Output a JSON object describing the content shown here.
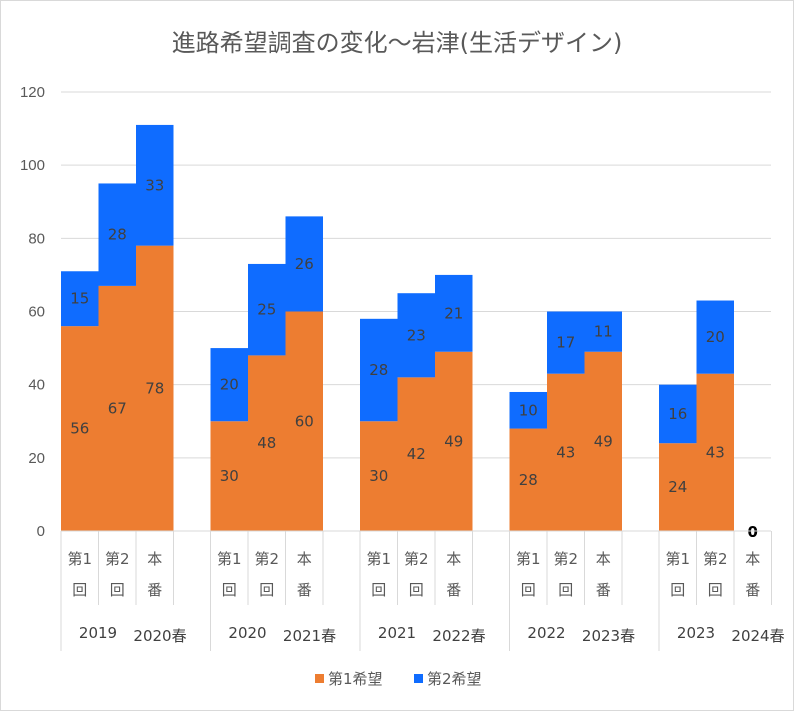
{
  "chart_data": {
    "type": "bar",
    "stacked": true,
    "title": "進路希望調査の変化～岩津(生活デザイン)",
    "ylim": [
      0,
      120
    ],
    "yticks": [
      0,
      20,
      40,
      60,
      80,
      100,
      120
    ],
    "grid": true,
    "legend_position": "bottom",
    "groups": [
      {
        "label_left": "2019",
        "label_right": "2020春",
        "categories": [
          {
            "line1": "第1",
            "line2": "回"
          },
          {
            "line1": "第2",
            "line2": "回"
          },
          {
            "line1": "本",
            "line2": "番"
          }
        ]
      },
      {
        "label_left": "2020",
        "label_right": "2021春",
        "categories": [
          {
            "line1": "第1",
            "line2": "回"
          },
          {
            "line1": "第2",
            "line2": "回"
          },
          {
            "line1": "本",
            "line2": "番"
          }
        ]
      },
      {
        "label_left": "2021",
        "label_right": "2022春",
        "categories": [
          {
            "line1": "第1",
            "line2": "回"
          },
          {
            "line1": "第2",
            "line2": "回"
          },
          {
            "line1": "本",
            "line2": "番"
          }
        ]
      },
      {
        "label_left": "2022",
        "label_right": "2023春",
        "categories": [
          {
            "line1": "第1",
            "line2": "回"
          },
          {
            "line1": "第2",
            "line2": "回"
          },
          {
            "line1": "本",
            "line2": "番"
          }
        ]
      },
      {
        "label_left": "2023",
        "label_right": "2024春",
        "categories": [
          {
            "line1": "第1",
            "line2": "回"
          },
          {
            "line1": "第2",
            "line2": "回"
          },
          {
            "line1": "本",
            "line2": "番"
          }
        ]
      }
    ],
    "series": [
      {
        "name": "第1希望",
        "color": "#ed7d31",
        "values": [
          [
            56,
            67,
            78
          ],
          [
            30,
            48,
            60
          ],
          [
            30,
            42,
            49
          ],
          [
            28,
            43,
            49
          ],
          [
            24,
            43,
            0
          ]
        ]
      },
      {
        "name": "第2希望",
        "color": "#0f6cff",
        "values": [
          [
            15,
            28,
            33
          ],
          [
            20,
            25,
            26
          ],
          [
            28,
            23,
            21
          ],
          [
            10,
            17,
            11
          ],
          [
            16,
            20,
            0
          ]
        ]
      }
    ],
    "highlighted_label": {
      "group": 4,
      "category": 2,
      "text": "0"
    }
  }
}
